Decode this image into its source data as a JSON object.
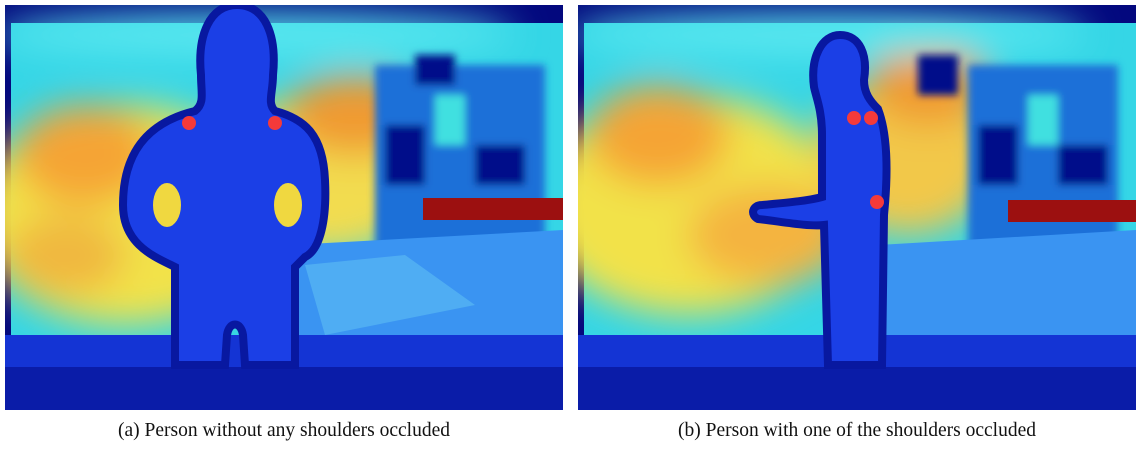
{
  "figure": {
    "panels": [
      {
        "caption": "(a) Person without any shoulders occluded"
      },
      {
        "caption": "(b) Person with one of the shoulders occluded"
      }
    ]
  }
}
